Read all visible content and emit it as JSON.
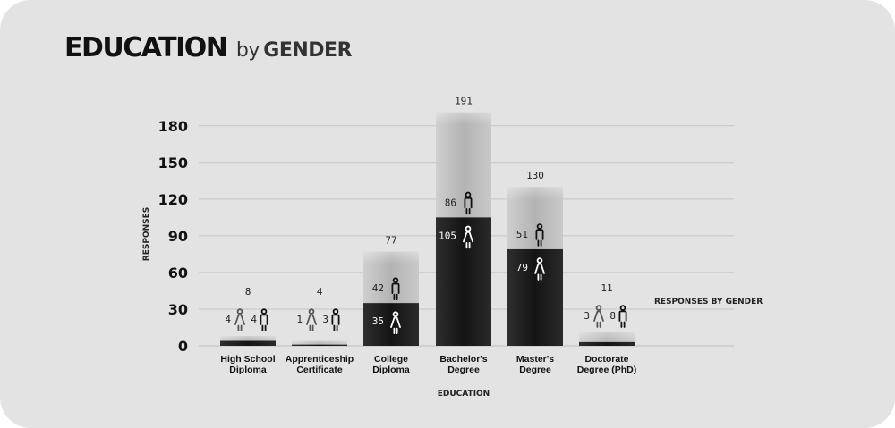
{
  "title": {
    "main": "EDUCATION",
    "by": "by",
    "rest": "GENDER"
  },
  "chart_data": {
    "type": "bar",
    "stacked": true,
    "xlabel": "EDUCATION",
    "ylabel": "RESPONSES",
    "ylim": [
      0,
      190
    ],
    "yticks": [
      "0",
      "30",
      "60",
      "90",
      "120",
      "150",
      "180"
    ],
    "grid": true,
    "legend_title": "RESPONSES BY GENDER",
    "categories": [
      [
        "High School",
        "Diploma"
      ],
      [
        "Apprenticeship",
        "Certificate"
      ],
      [
        "College",
        "Diploma"
      ],
      [
        "Bachelor's",
        "Degree"
      ],
      [
        "Master's",
        "Degree"
      ],
      [
        "Doctorate",
        "Degree (PhD)"
      ]
    ],
    "series": [
      {
        "values": [
          4,
          1,
          35,
          105,
          79,
          3
        ],
        "color": "#1c1c1c",
        "icon": "female-icon"
      },
      {
        "values": [
          4,
          3,
          42,
          86,
          51,
          8
        ],
        "color": "#bdbdbd",
        "icon": "male-icon"
      }
    ],
    "totals": [
      8,
      4,
      77,
      191,
      130,
      11
    ]
  }
}
